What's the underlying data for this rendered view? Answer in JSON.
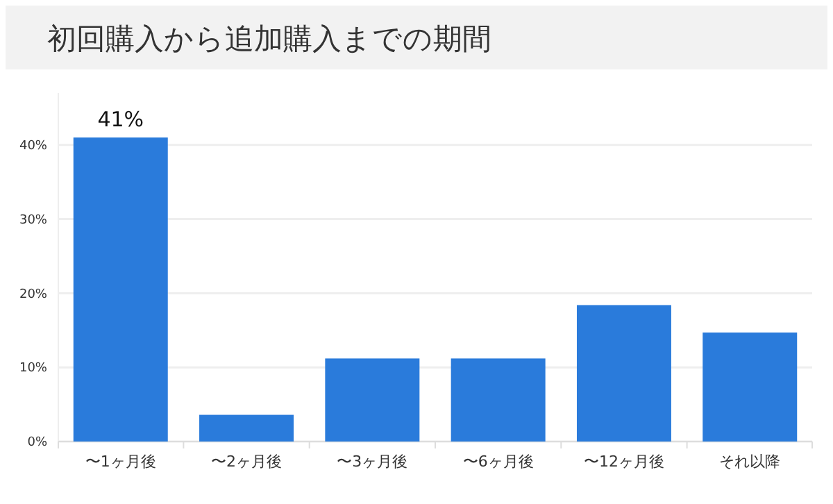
{
  "chart_data": {
    "type": "bar",
    "title": "初回購入から追加購入までの期間",
    "categories": [
      "〜1ヶ月後",
      "〜2ヶ月後",
      "〜3ヶ月後",
      "〜6ヶ月後",
      "〜12ヶ月後",
      "それ以降"
    ],
    "values": [
      41,
      3.6,
      11.2,
      11.2,
      18.4,
      14.7
    ],
    "value_labels": [
      "41%",
      null,
      null,
      null,
      null,
      null
    ],
    "color": "#2a7bdb",
    "ylim": [
      0,
      47
    ],
    "yticks": [
      {
        "value": 0,
        "label": "0%"
      },
      {
        "value": 10,
        "label": "10%"
      },
      {
        "value": 20,
        "label": "20%"
      },
      {
        "value": 30,
        "label": "30%"
      },
      {
        "value": 40,
        "label": "40%"
      }
    ],
    "grid": "y"
  }
}
